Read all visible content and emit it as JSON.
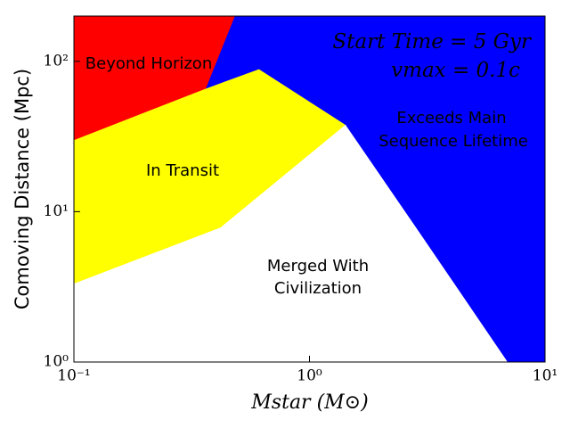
{
  "chart_data": {
    "type": "region",
    "title_lines": [
      "Start Time = 5 Gyr",
      "vmax = 0.1c"
    ],
    "x_label": "Mstar (M⊙)",
    "y_label": "Comoving Distance (Mpc)",
    "x_log": true,
    "y_log": true,
    "background": "#0000ff",
    "xlim": [
      0.1,
      10
    ],
    "ylim": [
      1,
      200
    ],
    "xticks": [
      {
        "value": 0.1,
        "label": "10⁻¹"
      },
      {
        "value": 1,
        "label": "10⁰"
      },
      {
        "value": 10,
        "label": "10¹"
      }
    ],
    "yticks": [
      {
        "value": 1,
        "label": "10⁰"
      },
      {
        "value": 10,
        "label": "10¹"
      },
      {
        "value": 100,
        "label": "10²"
      }
    ],
    "series": [
      {
        "color": "#ff0000",
        "x": [
          0.1,
          0.48,
          0.36,
          0.1
        ],
        "values": [
          200,
          200,
          65,
          29.7
        ]
      },
      {
        "color": "#ffff00",
        "x": [
          0.1,
          0.36,
          0.61,
          1.42,
          0.42,
          0.1
        ],
        "values": [
          29.7,
          65,
          88,
          37.5,
          7.8,
          3.3
        ]
      },
      {
        "color": "#ffffff",
        "x": [
          0.1,
          0.42,
          1.42,
          3,
          6.9,
          0.1
        ],
        "values": [
          3.3,
          7.8,
          37.5,
          6.8,
          1,
          1
        ]
      }
    ],
    "annotations": [
      "Beyond Horizon",
      "In Transit",
      "Merged With",
      "Civilization",
      "Exceeds Main",
      "Sequence Lifetime"
    ]
  }
}
